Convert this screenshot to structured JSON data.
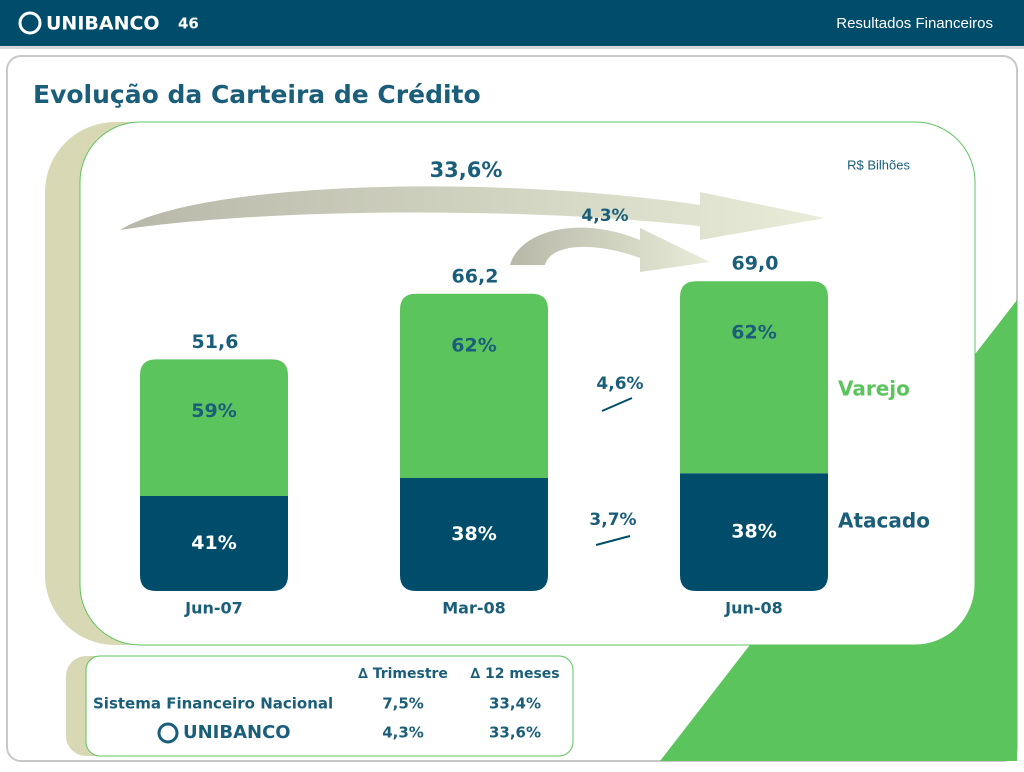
{
  "header": {
    "brand": "UNIBANCO",
    "page": "46",
    "section": "Resultados Financeiros"
  },
  "chart_data": {
    "type": "stacked_bar",
    "title": "Evolução da Carteira de Crédito",
    "unit": "R$ Bilhões",
    "categories": [
      "Jun-07",
      "Mar-08",
      "Jun-08"
    ],
    "totals": {
      "values": [
        51.6,
        66.2,
        69.0
      ],
      "value_labels": [
        "51,6",
        "66,2",
        "69,0"
      ]
    },
    "series": [
      {
        "name": "Atacado",
        "color": "#004d6b",
        "values": [
          41,
          38,
          38
        ],
        "value_labels": [
          "41%",
          "38%",
          "38%"
        ],
        "growth": "3,7%"
      },
      {
        "name": "Varejo",
        "color": "#5cc45c",
        "values": [
          59,
          62,
          62
        ],
        "value_labels": [
          "59%",
          "62%",
          "62%"
        ],
        "growth": "4,6%"
      }
    ],
    "growth_12_months": "33,6%",
    "growth_quarter": "4,3%"
  },
  "table": {
    "headers": [
      "∆ Trimestre",
      "∆ 12 meses"
    ],
    "rows": [
      [
        "Sistema Financeiro Nacional",
        "7,5%",
        "33,4%"
      ],
      [
        "UNIBANCO",
        "4,3%",
        "33,6%"
      ]
    ]
  }
}
